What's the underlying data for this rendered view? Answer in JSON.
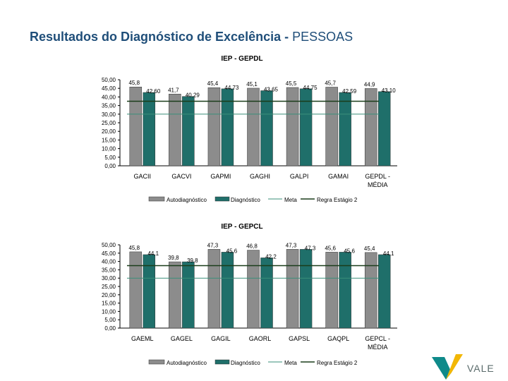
{
  "page": {
    "title_main": "Resultados do Diagnóstico de Excelência -",
    "title_sub": "PESSOAS"
  },
  "logo": {
    "text": "VALE"
  },
  "colors": {
    "auto": "#8c8c8c",
    "diag": "#1f6f6a",
    "meta": "#3a8f7a",
    "regra": "#1a3d1a",
    "title": "#1f4e79"
  },
  "chart_data": [
    {
      "type": "bar",
      "title": "IEP - GEPDL",
      "categories": [
        "GACII",
        "GACVI",
        "GAPMI",
        "GAGHI",
        "GALPI",
        "GAMAI",
        "GEPDL - MÉDIA"
      ],
      "series": [
        {
          "name": "Autodiagnóstico",
          "values": [
            45.8,
            41.7,
            45.4,
            45.1,
            45.5,
            45.7,
            44.9
          ],
          "labels": [
            "45,8",
            "41,7",
            "45,4",
            "45,1",
            "45,5",
            "45,7",
            "44,9"
          ]
        },
        {
          "name": "Diagnóstico",
          "values": [
            42.6,
            40.29,
            44.73,
            43.65,
            44.75,
            42.59,
            43.1
          ],
          "labels": [
            "42,60",
            "40,29",
            "44,73",
            "43,65",
            "44,75",
            "42,59",
            "43,10"
          ]
        }
      ],
      "lines": [
        {
          "name": "Meta",
          "value": 30
        },
        {
          "name": "Regra Estágio 2",
          "value": 37.5
        }
      ],
      "ylim": [
        0,
        50
      ],
      "yticks": [
        "0,00",
        "5,00",
        "10,00",
        "15,00",
        "20,00",
        "25,00",
        "30,00",
        "35,00",
        "40,00",
        "45,00",
        "50,00"
      ],
      "legend": "bottom",
      "grid": false
    },
    {
      "type": "bar",
      "title": "IEP - GEPCL",
      "categories": [
        "GAEML",
        "GAGEL",
        "GAGIL",
        "GAORL",
        "GAPSL",
        "GAQPL",
        "GEPCL - MÉDIA"
      ],
      "series": [
        {
          "name": "Autodiagnóstico",
          "values": [
            45.8,
            39.8,
            47.3,
            46.8,
            47.3,
            45.6,
            45.4
          ],
          "labels": [
            "45,8",
            "39,8",
            "47,3",
            "46,8",
            "47,3",
            "45,6",
            "45,4"
          ]
        },
        {
          "name": "Diagnóstico",
          "values": [
            44.1,
            39.8,
            45.6,
            42.2,
            47.3,
            45.6,
            44.1
          ],
          "labels": [
            "44,1",
            "39,8",
            "45,6",
            "42,2",
            "47,3",
            "45,6",
            "44,1"
          ]
        }
      ],
      "lines": [
        {
          "name": "Meta",
          "value": 30
        },
        {
          "name": "Regra Estágio 2",
          "value": 37.5
        }
      ],
      "ylim": [
        0,
        50
      ],
      "yticks": [
        "0,00",
        "5,00",
        "10,00",
        "15,00",
        "20,00",
        "25,00",
        "30,00",
        "35,00",
        "40,00",
        "45,00",
        "50,00"
      ],
      "legend": "bottom",
      "grid": false
    }
  ]
}
